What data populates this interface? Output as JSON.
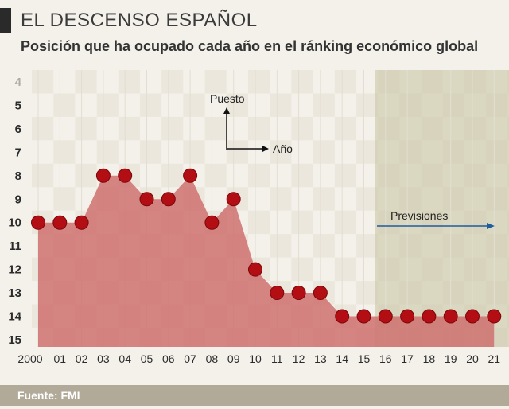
{
  "header": {
    "title": "EL DESCENSO ESPAÑOL",
    "subtitle": "Posición que ha ocupado cada año en el ránking económico global"
  },
  "footer": {
    "source": "Fuente: FMI"
  },
  "colors": {
    "area": "#cf7472",
    "point": "#b30e14",
    "forecast_band": "#c7c2a0",
    "arrow": "#1f5d9c",
    "accent_bar": "#2a2a2a",
    "footer_bg": "#b1aa98"
  },
  "chart_data": {
    "type": "area",
    "title": "EL DESCENSO ESPAÑOL",
    "subtitle": "Posición que ha ocupado cada año en el ránking económico global",
    "x_labels": [
      "2000",
      "01",
      "02",
      "03",
      "04",
      "05",
      "06",
      "07",
      "08",
      "09",
      "10",
      "11",
      "12",
      "13",
      "14",
      "15",
      "16",
      "17",
      "18",
      "19",
      "20",
      "21"
    ],
    "values": [
      10,
      10,
      10,
      8,
      8,
      9,
      9,
      8,
      10,
      9,
      12,
      13,
      13,
      13,
      14,
      14,
      14,
      14,
      14,
      14,
      14,
      14
    ],
    "y_ticks": [
      "4",
      "5",
      "6",
      "7",
      "8",
      "9",
      "10",
      "11",
      "12",
      "13",
      "14",
      "15"
    ],
    "ylim": [
      4,
      15
    ],
    "y_inverted": true,
    "forecast_start_label": "16",
    "forecast_label": "Previsiones",
    "axis_legend": {
      "y": "Puesto",
      "x": "Año"
    },
    "grid": true,
    "markers": true
  }
}
